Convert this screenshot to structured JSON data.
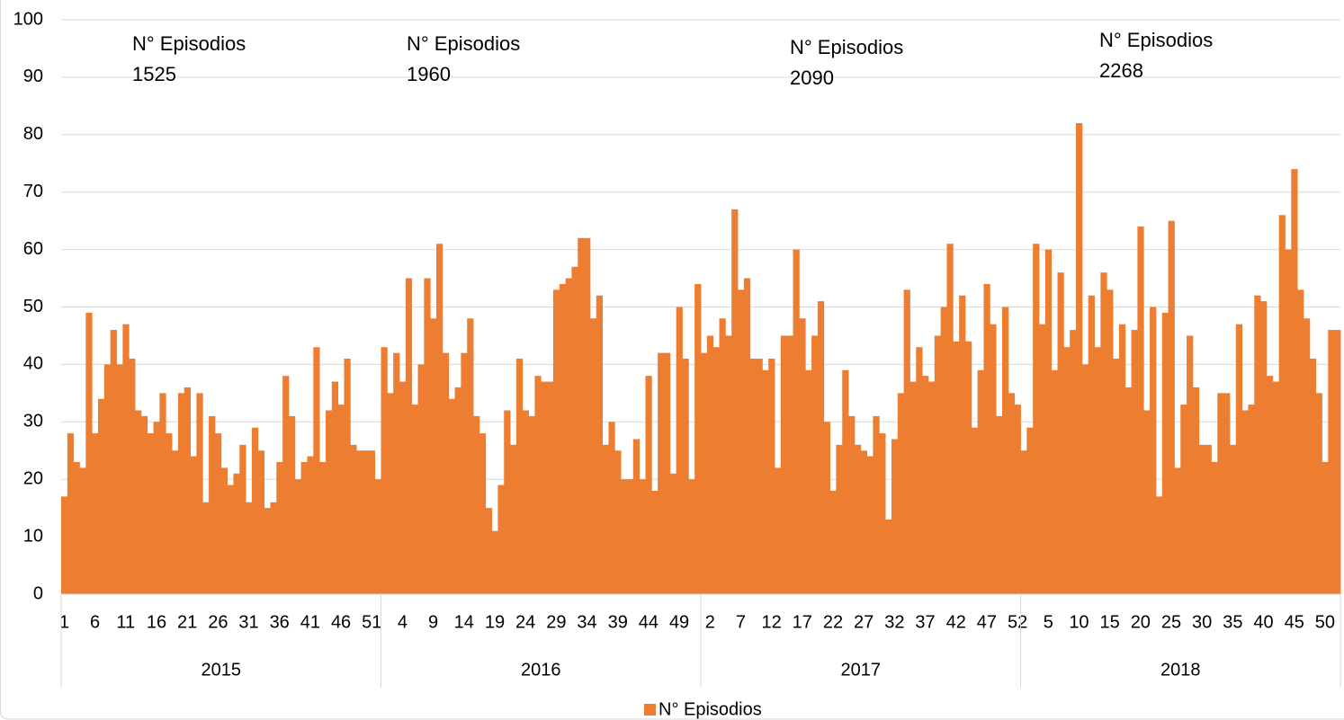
{
  "chart_data": {
    "type": "bar",
    "series": [
      {
        "name": "N° Episodios",
        "color": "#ED7D31",
        "values": [
          17,
          28,
          23,
          22,
          49,
          28,
          34,
          40,
          46,
          40,
          47,
          41,
          32,
          31,
          28,
          30,
          35,
          28,
          25,
          35,
          36,
          24,
          35,
          16,
          31,
          28,
          22,
          19,
          21,
          26,
          16,
          29,
          25,
          15,
          16,
          23,
          38,
          31,
          20,
          23,
          24,
          43,
          23,
          32,
          37,
          33,
          41,
          26,
          25,
          25,
          25,
          20,
          43,
          35,
          42,
          37,
          55,
          33,
          40,
          55,
          48,
          61,
          42,
          34,
          36,
          42,
          48,
          31,
          28,
          15,
          11,
          19,
          32,
          26,
          41,
          32,
          31,
          38,
          37,
          37,
          53,
          54,
          55,
          57,
          62,
          62,
          48,
          52,
          26,
          30,
          25,
          20,
          20,
          27,
          20,
          38,
          18,
          42,
          42,
          21,
          50,
          41,
          20,
          54,
          42,
          45,
          43,
          48,
          45,
          67,
          53,
          55,
          41,
          41,
          39,
          41,
          22,
          45,
          45,
          60,
          48,
          39,
          45,
          51,
          30,
          18,
          26,
          39,
          31,
          26,
          25,
          24,
          31,
          28,
          13,
          27,
          35,
          53,
          37,
          43,
          38,
          37,
          45,
          50,
          61,
          44,
          52,
          44,
          29,
          39,
          54,
          47,
          31,
          50,
          35,
          33,
          25,
          29,
          61,
          47,
          60,
          39,
          56,
          43,
          46,
          82,
          40,
          52,
          43,
          56,
          53,
          41,
          47,
          36,
          46,
          64,
          32,
          50,
          17,
          49,
          65,
          22,
          33,
          45,
          36,
          26,
          26,
          23,
          35,
          35,
          26,
          47,
          32,
          33,
          52,
          51,
          38,
          37,
          66,
          60,
          74,
          53,
          48,
          41,
          35,
          23,
          46,
          46
        ]
      }
    ],
    "categories": [
      "1",
      null,
      null,
      null,
      null,
      "6",
      null,
      null,
      null,
      null,
      "11",
      null,
      null,
      null,
      null,
      "16",
      null,
      null,
      null,
      null,
      "21",
      null,
      null,
      null,
      null,
      "26",
      null,
      null,
      null,
      null,
      "31",
      null,
      null,
      null,
      null,
      "36",
      null,
      null,
      null,
      null,
      "41",
      null,
      null,
      null,
      null,
      "46",
      null,
      null,
      null,
      null,
      "51",
      null,
      null,
      null,
      null,
      "4",
      null,
      null,
      null,
      null,
      "9",
      null,
      null,
      null,
      null,
      "14",
      null,
      null,
      null,
      null,
      "19",
      null,
      null,
      null,
      null,
      "24",
      null,
      null,
      null,
      null,
      "29",
      null,
      null,
      null,
      null,
      "34",
      null,
      null,
      null,
      null,
      "39",
      null,
      null,
      null,
      null,
      "44",
      null,
      null,
      null,
      null,
      "49",
      null,
      null,
      null,
      null,
      "2",
      null,
      null,
      null,
      null,
      "7",
      null,
      null,
      null,
      null,
      "12",
      null,
      null,
      null,
      null,
      "17",
      null,
      null,
      null,
      null,
      "22",
      null,
      null,
      null,
      null,
      "27",
      null,
      null,
      null,
      null,
      "32",
      null,
      null,
      null,
      null,
      "37",
      null,
      null,
      null,
      null,
      "42",
      null,
      null,
      null,
      null,
      "47",
      null,
      null,
      null,
      null,
      "52",
      null,
      null,
      null,
      null,
      "5",
      null,
      null,
      null,
      null,
      "10",
      null,
      null,
      null,
      null,
      "15",
      null,
      null,
      null,
      null,
      "20",
      null,
      null,
      null,
      null,
      "25",
      null,
      null,
      null,
      null,
      "30",
      null,
      null,
      null,
      null,
      "35",
      null,
      null,
      null,
      null,
      "40",
      null,
      null,
      null,
      null,
      "45",
      null,
      null,
      null,
      null,
      "50",
      null,
      null
    ],
    "groups": [
      "2015",
      "2016",
      "2017",
      "2018"
    ],
    "annotations": [
      {
        "title": "N° Episodios",
        "value": 1525
      },
      {
        "title": "N° Episodios",
        "value": 1960
      },
      {
        "title": "N° Episodios",
        "value": 2090
      },
      {
        "title": "N° Episodios",
        "value": 2268
      }
    ],
    "ylim": [
      0,
      100
    ],
    "yticks": [
      0,
      10,
      20,
      30,
      40,
      50,
      60,
      70,
      80,
      90,
      100
    ],
    "grid": true,
    "legend": "bottom"
  }
}
